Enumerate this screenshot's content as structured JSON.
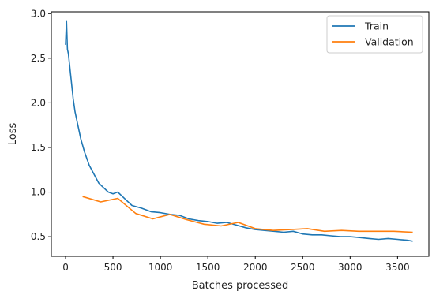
{
  "chart_data": {
    "type": "line",
    "xlabel": "Batches processed",
    "ylabel": "Loss",
    "xlim": [
      -150,
      3830
    ],
    "ylim": [
      0.28,
      3.02
    ],
    "xticks": [
      0,
      500,
      1000,
      1500,
      2000,
      2500,
      3000,
      3500
    ],
    "yticks": [
      0.5,
      1.0,
      1.5,
      2.0,
      2.5,
      3.0
    ],
    "xtick_labels": [
      "0",
      "500",
      "1000",
      "1500",
      "2000",
      "2500",
      "3000",
      "3500"
    ],
    "ytick_labels": [
      "0.5",
      "1.0",
      "1.5",
      "2.0",
      "2.5",
      "3.0"
    ],
    "grid": false,
    "legend_position": "top-right",
    "series": [
      {
        "name": "Train",
        "color": "#1f77b4",
        "x": [
          0,
          10,
          20,
          30,
          40,
          60,
          80,
          100,
          130,
          160,
          200,
          250,
          300,
          350,
          400,
          450,
          500,
          550,
          600,
          650,
          700,
          800,
          900,
          1000,
          1100,
          1200,
          1300,
          1400,
          1500,
          1600,
          1700,
          1800,
          1900,
          2000,
          2100,
          2200,
          2300,
          2400,
          2500,
          2600,
          2700,
          2800,
          2900,
          3000,
          3100,
          3200,
          3300,
          3400,
          3500,
          3600,
          3660
        ],
        "y": [
          2.65,
          2.92,
          2.6,
          2.55,
          2.45,
          2.25,
          2.05,
          1.9,
          1.75,
          1.6,
          1.45,
          1.3,
          1.2,
          1.1,
          1.05,
          1.0,
          0.98,
          1.0,
          0.95,
          0.9,
          0.85,
          0.82,
          0.78,
          0.77,
          0.75,
          0.74,
          0.7,
          0.68,
          0.67,
          0.65,
          0.66,
          0.63,
          0.6,
          0.58,
          0.57,
          0.56,
          0.55,
          0.56,
          0.53,
          0.52,
          0.52,
          0.51,
          0.5,
          0.5,
          0.49,
          0.48,
          0.47,
          0.48,
          0.47,
          0.46,
          0.45
        ]
      },
      {
        "name": "Validation",
        "color": "#ff7f0e",
        "x": [
          180,
          370,
          550,
          740,
          920,
          1100,
          1280,
          1460,
          1640,
          1820,
          2000,
          2190,
          2370,
          2550,
          2730,
          2910,
          3090,
          3270,
          3460,
          3660
        ],
        "y": [
          0.95,
          0.89,
          0.93,
          0.76,
          0.7,
          0.75,
          0.69,
          0.64,
          0.62,
          0.66,
          0.59,
          0.57,
          0.58,
          0.59,
          0.56,
          0.57,
          0.56,
          0.56,
          0.56,
          0.55
        ]
      }
    ]
  }
}
